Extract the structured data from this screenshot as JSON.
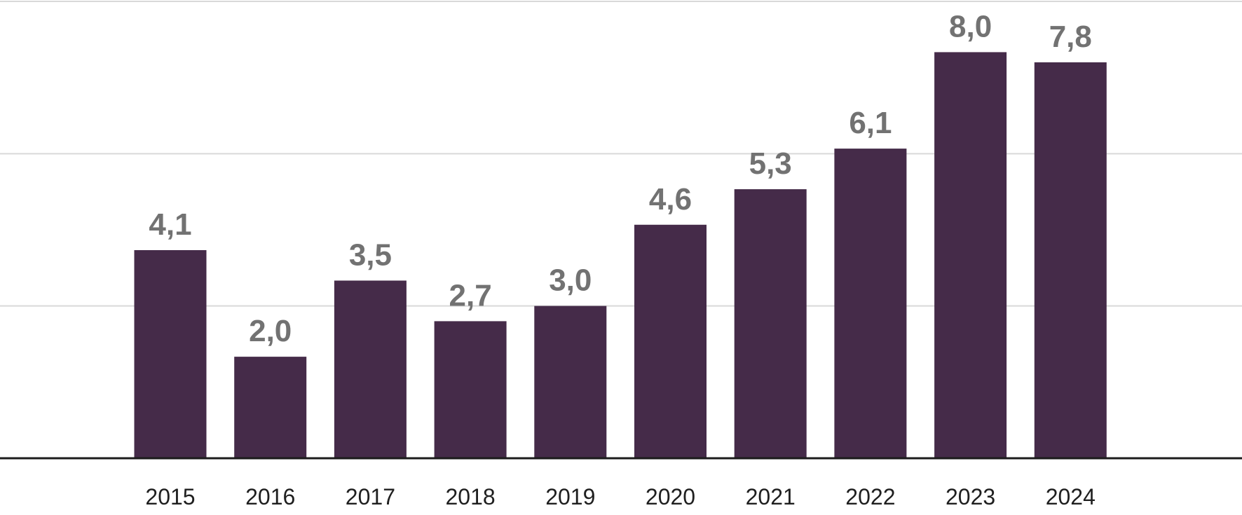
{
  "colors": {
    "bar": "#452b49",
    "value_label": "#727272",
    "tick_label": "#1f1f1f",
    "grid": "#d9d9d9",
    "axis": "#1c1c1c"
  },
  "chart_data": {
    "type": "bar",
    "title": "",
    "xlabel": "",
    "ylabel": "",
    "categories": [
      "2015",
      "2016",
      "2017",
      "2018",
      "2019",
      "2020",
      "2021",
      "2022",
      "2023",
      "2024"
    ],
    "values": [
      4.1,
      2.0,
      3.5,
      2.7,
      3.0,
      4.6,
      5.3,
      6.1,
      8.0,
      7.8
    ],
    "value_labels": [
      "4,1",
      "2,0",
      "3,5",
      "2,7",
      "3,0",
      "4,6",
      "5,3",
      "6,1",
      "8,0",
      "7,8"
    ],
    "ylim": [
      0,
      9
    ],
    "gridlines": [
      3,
      6,
      9
    ],
    "grid": true,
    "legend": "none"
  }
}
